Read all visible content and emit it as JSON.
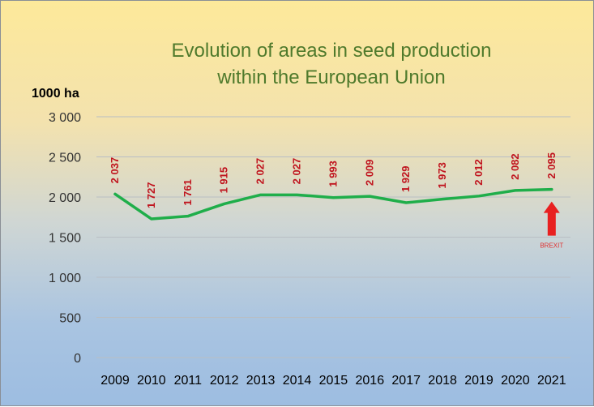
{
  "chart_data": {
    "type": "line",
    "title": "Evolution of areas in seed production",
    "subtitle": "within the European Union",
    "ylabel": "1000 ha",
    "xlabel": "",
    "ylim": [
      0,
      3000
    ],
    "yticks": [
      0,
      500,
      1000,
      1500,
      2000,
      2500,
      3000
    ],
    "ytick_labels": [
      "0",
      "500",
      "1 000",
      "1 500",
      "2 000",
      "2 500",
      "3 000"
    ],
    "grid": true,
    "categories": [
      "2009",
      "2010",
      "2011",
      "2012",
      "2013",
      "2014",
      "2015",
      "2016",
      "2017",
      "2018",
      "2019",
      "2020",
      "2021"
    ],
    "series": [
      {
        "values": [
          2037,
          1727,
          1761,
          1915,
          2027,
          2027,
          1993,
          2009,
          1929,
          1973,
          2012,
          2082,
          2095
        ],
        "data_labels": [
          "2 037",
          "1 727",
          "1 761",
          "1 915",
          "2 027",
          "2 027",
          "1 993",
          "2 009",
          "1 929",
          "1 973",
          "2 012",
          "2 082",
          "2 095"
        ]
      }
    ],
    "annotation": {
      "category": "2021",
      "text": "BREXIT"
    },
    "colors": {
      "line": "#1fae4a",
      "labels": "#c0141e",
      "arrow": "#e82020",
      "title": "#4f7a2c"
    }
  }
}
